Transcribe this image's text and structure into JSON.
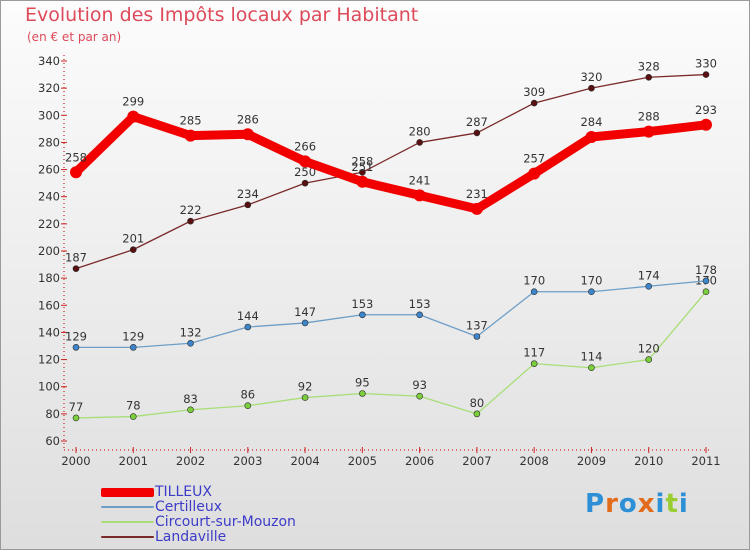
{
  "title": "Evolution des Impôts locaux par Habitant",
  "subtitle": "(en € et par an)",
  "logo": {
    "text": "Proxiti",
    "colors": [
      "#2d8fd6",
      "#e36b1c",
      "#2d8fd6",
      "#e36b1c",
      "#2d8fd6",
      "#9acd32",
      "#2d8fd6"
    ]
  },
  "chart_data": {
    "type": "line",
    "title": "Evolution des Impôts locaux par Habitant",
    "subtitle": "(en € et par an)",
    "x": [
      "2000",
      "2001",
      "2002",
      "2003",
      "2004",
      "2005",
      "2006",
      "2007",
      "2008",
      "2009",
      "2010",
      "2011"
    ],
    "ylim": [
      60,
      340
    ],
    "yticks": [
      60,
      80,
      100,
      120,
      140,
      160,
      180,
      200,
      220,
      240,
      260,
      280,
      300,
      320,
      340
    ],
    "grid": false,
    "legend_position": "bottom-left",
    "series": [
      {
        "name": "Landaville",
        "color": "#7a2a2a",
        "marker": "#5a1010",
        "width": 1.3,
        "values": [
          187,
          201,
          222,
          234,
          250,
          258,
          280,
          287,
          309,
          320,
          328,
          330
        ]
      },
      {
        "name": "Circourt-sur-Mouzon",
        "color": "#a8de78",
        "marker": "#7ccf3c",
        "width": 1.3,
        "values": [
          77,
          78,
          83,
          86,
          92,
          95,
          93,
          80,
          117,
          114,
          120,
          170
        ]
      },
      {
        "name": "Certilleux",
        "color": "#6d9ec7",
        "marker": "#3d86cc",
        "width": 1.3,
        "values": [
          129,
          129,
          132,
          144,
          147,
          153,
          153,
          137,
          170,
          170,
          174,
          178
        ]
      },
      {
        "name": "TILLEUX",
        "color": "#f20000",
        "marker": "#f20000",
        "width": 9,
        "values": [
          258,
          299,
          285,
          286,
          266,
          251,
          241,
          231,
          257,
          284,
          288,
          293
        ]
      }
    ]
  },
  "legend": [
    {
      "name": "TILLEUX",
      "color": "#f20000",
      "thickness": 9
    },
    {
      "name": "Certilleux",
      "color": "#6d9ec7",
      "thickness": 2
    },
    {
      "name": "Circourt-sur-Mouzon",
      "color": "#a8de78",
      "thickness": 2
    },
    {
      "name": "Landaville",
      "color": "#7a2a2a",
      "thickness": 2
    }
  ]
}
